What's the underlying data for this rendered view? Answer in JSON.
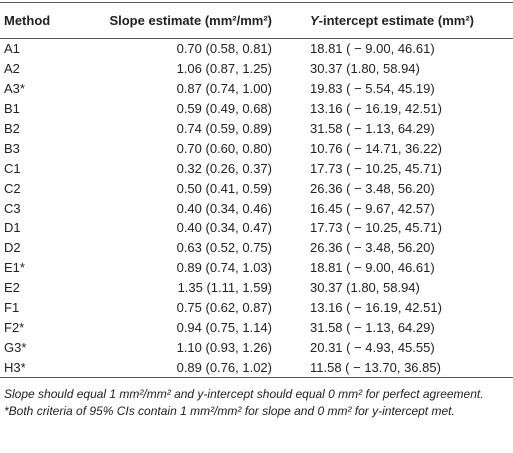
{
  "table": {
    "header": [
      "Method",
      "Slope estimate (mm²/mm²)",
      {
        "italic": "Y",
        "rest": "-intercept estimate (mm²)"
      }
    ],
    "rows": [
      [
        "A1",
        "0.70 (0.58, 0.81)",
        "18.81 ( − 9.00, 46.61)"
      ],
      [
        "A2",
        "1.06 (0.87, 1.25)",
        "30.37 (1.80, 58.94)"
      ],
      [
        "A3*",
        "0.87 (0.74, 1.00)",
        "19.83 ( − 5.54, 45.19)"
      ],
      [
        "B1",
        "0.59 (0.49, 0.68)",
        "13.16 ( − 16.19, 42.51)"
      ],
      [
        "B2",
        "0.74 (0.59, 0.89)",
        "31.58 ( − 1.13, 64.29)"
      ],
      [
        "B3",
        "0.70 (0.60, 0.80)",
        "10.76 ( − 14.71, 36.22)"
      ],
      [
        "C1",
        "0.32 (0.26, 0.37)",
        "17.73 ( − 10.25, 45.71)"
      ],
      [
        "C2",
        "0.50 (0.41, 0.59)",
        "26.36 ( − 3.48, 56.20)"
      ],
      [
        "C3",
        "0.40 (0.34, 0.46)",
        "16.45 ( − 9.67, 42.57)"
      ],
      [
        "D1",
        "0.40 (0.34, 0.47)",
        "17.73 ( − 10.25, 45.71)"
      ],
      [
        "D2",
        "0.63 (0.52, 0.75)",
        "26.36 ( − 3.48, 56.20)"
      ],
      [
        "E1*",
        "0.89 (0.74, 1.03)",
        "18.81 ( − 9.00, 46.61)"
      ],
      [
        "E2",
        "1.35 (1.11, 1.59)",
        "30.37 (1.80, 58.94)"
      ],
      [
        "F1",
        "0.75 (0.62, 0.87)",
        "13.16 ( − 16.19, 42.51)"
      ],
      [
        "F2*",
        "0.94 (0.75, 1.14)",
        "31.58 ( − 1.13, 64.29)"
      ],
      [
        "G3*",
        "1.10 (0.93, 1.26)",
        "20.31 ( − 4.93, 45.55)"
      ],
      [
        "H3*",
        "0.89 (0.76, 1.02)",
        "11.58 ( − 13.70, 36.85)"
      ]
    ],
    "footnotes": [
      "Slope should equal 1 mm²/mm² and y-intercept should equal 0 mm² for perfect agreement.",
      "*Both criteria of 95% CIs contain 1 mm²/mm² for slope and 0 mm² for y-intercept met."
    ]
  }
}
